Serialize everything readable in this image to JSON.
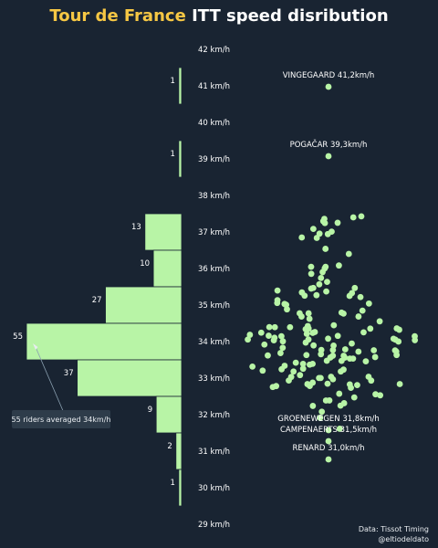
{
  "title": {
    "highlight": "Tour de France",
    "rest": "ITT speed disribution"
  },
  "colors": {
    "background": "#192432",
    "bar": "#b8f4a6",
    "dot": "#b8f4a6",
    "title_highlight": "#f6c744",
    "text": "#ffffff"
  },
  "chart_data": [
    {
      "type": "bar",
      "orientation": "horizontal",
      "ylim": [
        29,
        42
      ],
      "yticks": [
        {
          "value": 42,
          "label": "42 km/h"
        },
        {
          "value": 41,
          "label": "41 km/h"
        },
        {
          "value": 40,
          "label": "40 km/h"
        },
        {
          "value": 39,
          "label": "39 km/h"
        },
        {
          "value": 38,
          "label": "38 km/h"
        },
        {
          "value": 37,
          "label": "37 km/h"
        },
        {
          "value": 36,
          "label": "36 km/h"
        },
        {
          "value": 35,
          "label": "35 km/h"
        },
        {
          "value": 34,
          "label": "34 km/h"
        },
        {
          "value": 33,
          "label": "33 km/h"
        },
        {
          "value": 32,
          "label": "32 km/h"
        },
        {
          "value": 31,
          "label": "31 km/h"
        },
        {
          "value": 30,
          "label": "30 km/h"
        },
        {
          "value": 29,
          "label": "29 km/h"
        }
      ],
      "categories": [
        41,
        39,
        37,
        36,
        35,
        34,
        33,
        32,
        31,
        30
      ],
      "values": [
        1,
        1,
        13,
        10,
        27,
        55,
        37,
        9,
        2,
        1
      ],
      "annotation": {
        "text": "55 riders averaged 34km/h",
        "target": 34
      }
    },
    {
      "type": "scatter",
      "labels": [
        {
          "text": "VINGEGAARD 41,2km/h",
          "speed": 41.2
        },
        {
          "text": "POGAČAR 39,3km/h",
          "speed": 39.3
        },
        {
          "text": "GROENEWEGEN 31,8km/h",
          "speed": 31.8
        },
        {
          "text": "CAMPENAERTS 31,5km/h",
          "speed": 31.5
        },
        {
          "text": "RENARD 31,0km/h",
          "speed": 31.0
        }
      ]
    }
  ],
  "credits": {
    "source": "Data: Tissot Timing",
    "author": "@eltiodeldato"
  }
}
